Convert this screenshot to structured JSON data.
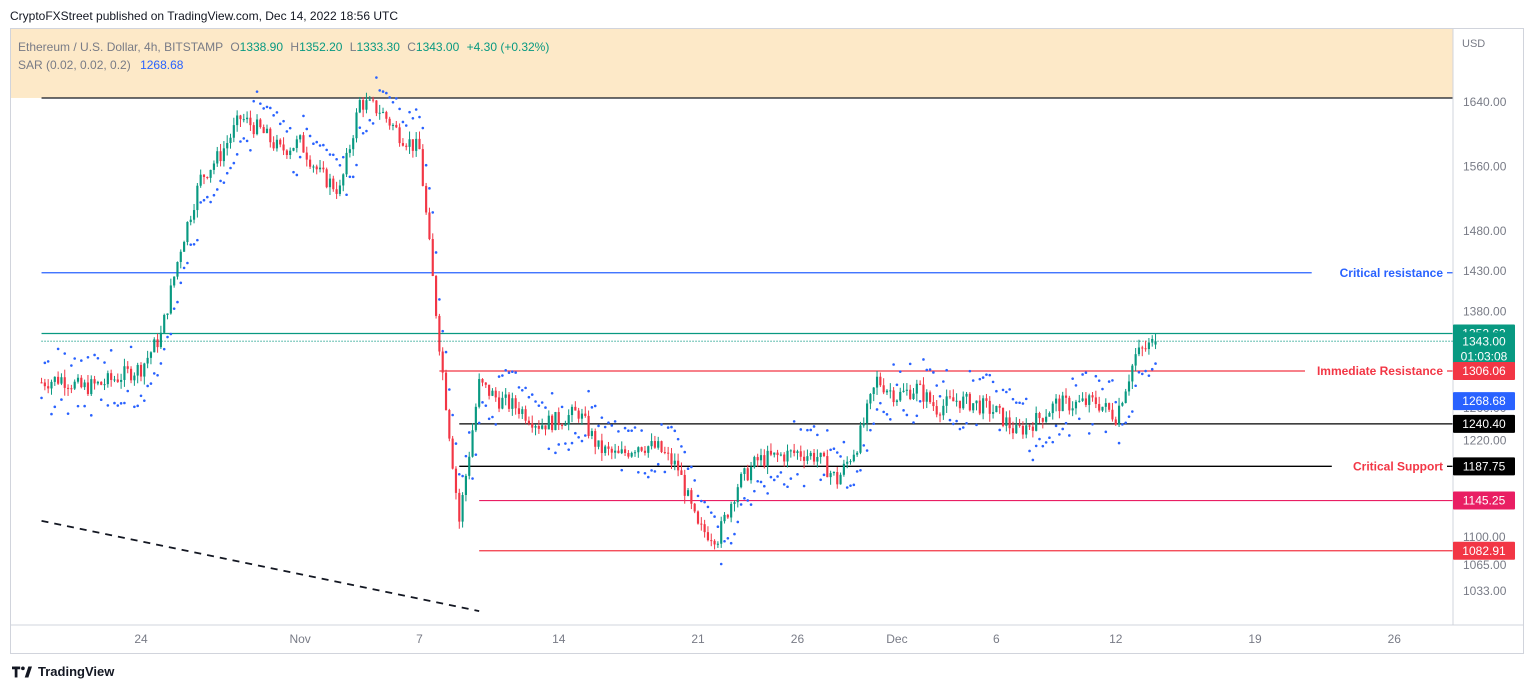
{
  "header": {
    "published": "CryptoFXStreet published on TradingView.com, Dec 14, 2022 18:56 UTC"
  },
  "legend": {
    "symbol": "Ethereum / U.S. Dollar, 4h, BITSTAMP",
    "o_label": "O",
    "o_value": "1338.90",
    "h_label": "H",
    "h_value": "1352.20",
    "l_label": "L",
    "l_value": "1333.30",
    "c_label": "C",
    "c_value": "1343.00",
    "change": "+4.30 (+0.32%)",
    "sar_label": "SAR (0.02, 0.02, 0.2)",
    "sar_value": "1268.68"
  },
  "footer": {
    "brand": "TradingView"
  },
  "colors": {
    "up": "#089981",
    "down": "#f23645",
    "sar": "#2962ff",
    "zone": "#fde9c8",
    "critical_resistance": "#2962ff",
    "red": "#f23645",
    "pink": "#e91e63",
    "black": "#000000",
    "green": "#089981"
  },
  "chart_data": {
    "type": "candlestick",
    "currency_label": "USD",
    "ylim": [
      1010,
      1745
    ],
    "y_ticks": [
      "1640.00",
      "1560.00",
      "1480.00",
      "1430.00",
      "1380.00",
      "1300.00",
      "1260.00",
      "1220.00",
      "1100.00",
      "1065.00",
      "1033.00"
    ],
    "x_ticks": [
      {
        "label": "24",
        "date": "2022-10-24"
      },
      {
        "label": "Nov",
        "date": "2022-11-01"
      },
      {
        "label": "7",
        "date": "2022-11-07"
      },
      {
        "label": "14",
        "date": "2022-11-14"
      },
      {
        "label": "21",
        "date": "2022-11-21"
      },
      {
        "label": "26",
        "date": "2022-11-26"
      },
      {
        "label": "Dec",
        "date": "2022-12-01"
      },
      {
        "label": "6",
        "date": "2022-12-06"
      },
      {
        "label": "12",
        "date": "2022-12-12"
      },
      {
        "label": "19",
        "date": "2022-12-19"
      },
      {
        "label": "26",
        "date": "2022-12-26"
      }
    ],
    "zone": {
      "from": 1645,
      "to": 1745,
      "color": "#fde9c8"
    },
    "levels": [
      {
        "value": 1645,
        "label": "",
        "badge": "",
        "color": "#131722",
        "dotted": false,
        "from_date": "2022-10-19"
      },
      {
        "value": 1428,
        "label": "Critical resistance",
        "badge": "",
        "color": "#2962ff",
        "dotted": false,
        "from_date": "2022-10-19"
      },
      {
        "value": 1352.63,
        "label": "",
        "badge": "1352.63",
        "color": "#089981",
        "dotted": false,
        "from_date": "2022-10-19"
      },
      {
        "value": 1343.0,
        "label": "",
        "badge": "1343.00\n01:03:08",
        "color": "#089981",
        "dotted": true,
        "from_date": "2022-10-19"
      },
      {
        "value": 1306.06,
        "label": "Immediate Resistance",
        "badge": "1306.06",
        "color": "#f23645",
        "dotted": false,
        "from_date": "2022-11-08"
      },
      {
        "value": 1268.68,
        "label": "",
        "badge": "1268.68",
        "color": "#2962ff",
        "dotted": false,
        "badge_only": true
      },
      {
        "value": 1240.4,
        "label": "",
        "badge": "1240.40",
        "color": "#000000",
        "dotted": false,
        "from_date": "2022-11-09"
      },
      {
        "value": 1187.75,
        "label": "Critical Support",
        "badge": "1187.75",
        "color": "#000000",
        "label_color": "#f23645",
        "dotted": false,
        "from_date": "2022-11-09"
      },
      {
        "value": 1145.25,
        "label": "",
        "badge": "1145.25",
        "color": "#e91e63",
        "dotted": false,
        "from_date": "2022-11-10"
      },
      {
        "value": 1082.91,
        "label": "",
        "badge": "1082.91",
        "color": "#f23645",
        "dotted": false,
        "from_date": "2022-11-10"
      }
    ],
    "trendline": {
      "from": {
        "date": "2022-10-19",
        "value": 1120
      },
      "to": {
        "date": "2022-11-10",
        "value": 1008
      },
      "style": "dashed"
    },
    "waypoints": [
      [
        "2022-10-19",
        1292
      ],
      [
        "2022-10-20",
        1297
      ],
      [
        "2022-10-21",
        1285
      ],
      [
        "2022-10-22",
        1290
      ],
      [
        "2022-10-23",
        1300
      ],
      [
        "2022-10-24",
        1310
      ],
      [
        "2022-10-25",
        1350
      ],
      [
        "2022-10-26",
        1460
      ],
      [
        "2022-10-27",
        1545
      ],
      [
        "2022-10-28",
        1575
      ],
      [
        "2022-10-29",
        1620
      ],
      [
        "2022-10-30",
        1605
      ],
      [
        "2022-10-31",
        1580
      ],
      [
        "2022-11-01",
        1590
      ],
      [
        "2022-11-02",
        1550
      ],
      [
        "2022-11-03",
        1530
      ],
      [
        "2022-11-04",
        1640
      ],
      [
        "2022-11-05",
        1630
      ],
      [
        "2022-11-06",
        1600
      ],
      [
        "2022-11-07",
        1580
      ],
      [
        "2022-11-08",
        1340
      ],
      [
        "2022-11-09",
        1120
      ],
      [
        "2022-11-10",
        1290
      ],
      [
        "2022-11-11",
        1270
      ],
      [
        "2022-11-12",
        1260
      ],
      [
        "2022-11-13",
        1240
      ],
      [
        "2022-11-14",
        1245
      ],
      [
        "2022-11-15",
        1255
      ],
      [
        "2022-11-16",
        1210
      ],
      [
        "2022-11-17",
        1200
      ],
      [
        "2022-11-18",
        1215
      ],
      [
        "2022-11-19",
        1210
      ],
      [
        "2022-11-20",
        1185
      ],
      [
        "2022-11-21",
        1110
      ],
      [
        "2022-11-22",
        1100
      ],
      [
        "2022-11-23",
        1165
      ],
      [
        "2022-11-24",
        1195
      ],
      [
        "2022-11-25",
        1200
      ],
      [
        "2022-11-26",
        1205
      ],
      [
        "2022-11-27",
        1200
      ],
      [
        "2022-11-28",
        1170
      ],
      [
        "2022-11-29",
        1215
      ],
      [
        "2022-11-30",
        1295
      ],
      [
        "2022-12-01",
        1275
      ],
      [
        "2022-12-02",
        1285
      ],
      [
        "2022-12-03",
        1260
      ],
      [
        "2022-12-04",
        1270
      ],
      [
        "2022-12-05",
        1265
      ],
      [
        "2022-12-06",
        1255
      ],
      [
        "2022-12-07",
        1230
      ],
      [
        "2022-12-08",
        1245
      ],
      [
        "2022-12-09",
        1265
      ],
      [
        "2022-12-10",
        1265
      ],
      [
        "2022-12-11",
        1268
      ],
      [
        "2022-12-12",
        1250
      ],
      [
        "2022-12-13",
        1325
      ],
      [
        "2022-12-14",
        1343
      ]
    ],
    "last_date": "2022-12-14"
  }
}
